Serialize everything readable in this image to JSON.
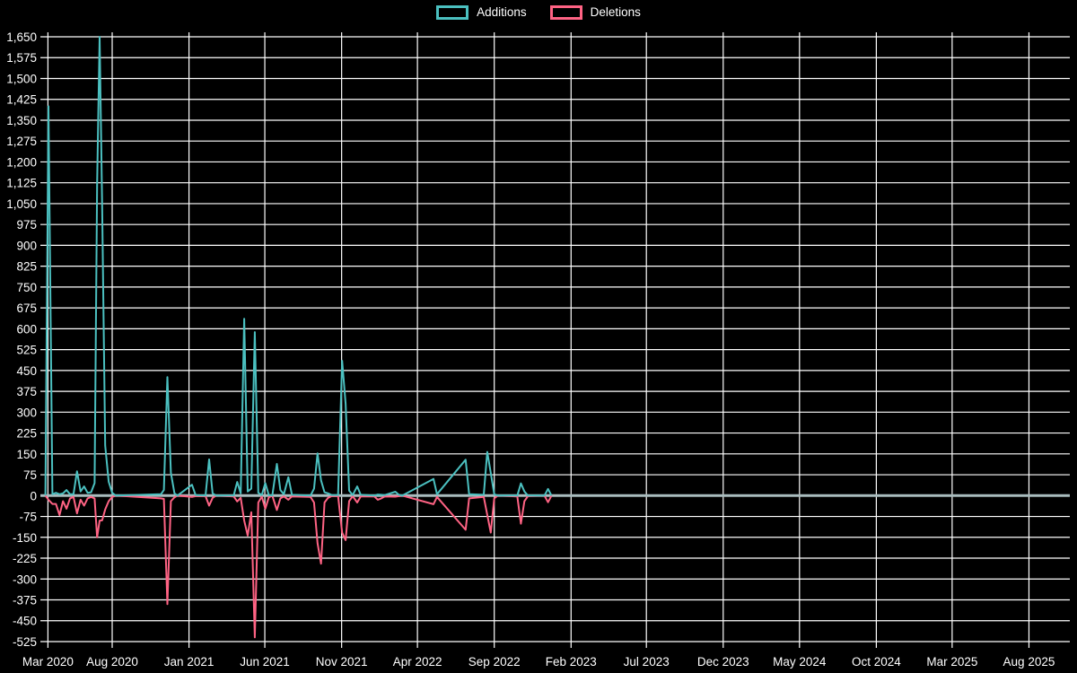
{
  "chart_data": {
    "type": "line",
    "title": "",
    "legend_position": "top-center",
    "background_color": "#000000",
    "grid": {
      "line_color": "#ffffff",
      "zero_line_color": "#a9bcbe",
      "grid_on": true
    },
    "legend": [
      {
        "label": "Additions",
        "color": "#4bc0c0"
      },
      {
        "label": "Deletions",
        "color": "#ff6384"
      }
    ],
    "y_axis": {
      "min": -525,
      "max": 1650,
      "step": 75,
      "tick_labels": [
        "1,650",
        "1,575",
        "1,500",
        "1,425",
        "1,350",
        "1,275",
        "1,200",
        "1,125",
        "1,050",
        "975",
        "900",
        "825",
        "750",
        "675",
        "600",
        "525",
        "450",
        "375",
        "300",
        "225",
        "150",
        "75",
        "0",
        "-75",
        "-150",
        "-225",
        "-300",
        "-375",
        "-450",
        "-525"
      ]
    },
    "x_axis": {
      "ticks": [
        {
          "label": "Mar 2020",
          "date": "2020-03-26"
        },
        {
          "label": "Aug 2020",
          "date": "2020-08-01"
        },
        {
          "label": "Jan 2021",
          "date": "2021-01-01"
        },
        {
          "label": "Jun 2021",
          "date": "2021-06-01"
        },
        {
          "label": "Nov 2021",
          "date": "2021-11-01"
        },
        {
          "label": "Apr 2022",
          "date": "2022-04-01"
        },
        {
          "label": "Sep 2022",
          "date": "2022-09-01"
        },
        {
          "label": "Feb 2023",
          "date": "2023-02-01"
        },
        {
          "label": "Jul 2023",
          "date": "2023-07-01"
        },
        {
          "label": "Dec 2023",
          "date": "2023-12-01"
        },
        {
          "label": "May 2024",
          "date": "2024-05-01"
        },
        {
          "label": "Oct 2024",
          "date": "2024-10-01"
        },
        {
          "label": "Mar 2025",
          "date": "2025-03-01"
        },
        {
          "label": "Aug 2025",
          "date": "2025-08-01"
        }
      ]
    },
    "series_colors": {
      "additions": "#4bc0c0",
      "deletions": "#ff6384"
    },
    "columns": [
      "date",
      "additions",
      "deletions"
    ],
    "points": [
      [
        "2020-03-21",
        0,
        0
      ],
      [
        "2020-03-27",
        1400,
        -15
      ],
      [
        "2020-04-04",
        5,
        -30
      ],
      [
        "2020-04-11",
        10,
        -30
      ],
      [
        "2020-04-18",
        5,
        -70
      ],
      [
        "2020-04-25",
        8,
        -20
      ],
      [
        "2020-05-02",
        20,
        -47
      ],
      [
        "2020-05-09",
        5,
        -10
      ],
      [
        "2020-05-16",
        5,
        -5
      ],
      [
        "2020-05-23",
        87,
        -64
      ],
      [
        "2020-05-30",
        15,
        -15
      ],
      [
        "2020-06-06",
        33,
        -36
      ],
      [
        "2020-06-13",
        10,
        -10
      ],
      [
        "2020-06-20",
        12,
        -5
      ],
      [
        "2020-06-27",
        45,
        -10
      ],
      [
        "2020-07-02",
        1120,
        -150
      ],
      [
        "2020-07-07",
        1650,
        -90
      ],
      [
        "2020-07-12",
        1046,
        -89
      ],
      [
        "2020-07-18",
        180,
        -50
      ],
      [
        "2020-07-25",
        50,
        -20
      ],
      [
        "2020-08-01",
        10,
        -5
      ],
      [
        "2020-08-08",
        0,
        0
      ],
      [
        "2020-11-06",
        5,
        -10
      ],
      [
        "2020-11-12",
        20,
        -12
      ],
      [
        "2020-11-19",
        426,
        -390
      ],
      [
        "2020-11-26",
        82,
        -20
      ],
      [
        "2020-12-03",
        8,
        -6
      ],
      [
        "2020-12-09",
        0,
        0
      ],
      [
        "2021-01-07",
        39,
        -5
      ],
      [
        "2021-01-14",
        2,
        -2
      ],
      [
        "2021-02-03",
        0,
        -2
      ],
      [
        "2021-02-10",
        130,
        -36
      ],
      [
        "2021-02-17",
        8,
        -8
      ],
      [
        "2021-02-24",
        0,
        0
      ],
      [
        "2021-03-31",
        0,
        -3
      ],
      [
        "2021-04-07",
        49,
        -21
      ],
      [
        "2021-04-14",
        8,
        -8
      ],
      [
        "2021-04-21",
        636,
        -90
      ],
      [
        "2021-04-28",
        15,
        -144
      ],
      [
        "2021-05-05",
        25,
        -60
      ],
      [
        "2021-05-12",
        588,
        -510
      ],
      [
        "2021-05-19",
        10,
        -25
      ],
      [
        "2021-05-26",
        2,
        -4
      ],
      [
        "2021-06-02",
        45,
        -47
      ],
      [
        "2021-06-09",
        2,
        -6
      ],
      [
        "2021-06-16",
        0,
        0
      ],
      [
        "2021-06-25",
        114,
        -52
      ],
      [
        "2021-07-02",
        20,
        -10
      ],
      [
        "2021-07-09",
        5,
        -3
      ],
      [
        "2021-07-18",
        66,
        -15
      ],
      [
        "2021-07-25",
        3,
        -3
      ],
      [
        "2021-08-31",
        0,
        -5
      ],
      [
        "2021-09-07",
        25,
        -25
      ],
      [
        "2021-09-14",
        152,
        -171
      ],
      [
        "2021-09-21",
        55,
        -245
      ],
      [
        "2021-09-28",
        12,
        -25
      ],
      [
        "2021-10-05",
        8,
        -8
      ],
      [
        "2021-10-12",
        2,
        -2
      ],
      [
        "2021-10-25",
        2,
        -2
      ],
      [
        "2021-11-02",
        485,
        -133
      ],
      [
        "2021-11-09",
        330,
        -160
      ],
      [
        "2021-11-16",
        18,
        -20
      ],
      [
        "2021-11-23",
        2,
        -2
      ],
      [
        "2021-12-02",
        33,
        -25
      ],
      [
        "2021-12-09",
        3,
        -3
      ],
      [
        "2022-01-05",
        0,
        -3
      ],
      [
        "2022-01-12",
        4,
        -15
      ],
      [
        "2022-01-19",
        3,
        -10
      ],
      [
        "2022-01-26",
        2,
        -3
      ],
      [
        "2022-02-16",
        14,
        -4
      ],
      [
        "2022-02-23",
        3,
        -2
      ],
      [
        "2022-03-02",
        0,
        0
      ],
      [
        "2022-05-03",
        60,
        -31
      ],
      [
        "2022-05-10",
        5,
        -5
      ],
      [
        "2022-07-06",
        129,
        -123
      ],
      [
        "2022-07-13",
        5,
        -10
      ],
      [
        "2022-08-11",
        3,
        -5
      ],
      [
        "2022-08-18",
        157,
        -69
      ],
      [
        "2022-08-25",
        82,
        -133
      ],
      [
        "2022-09-01",
        5,
        -10
      ],
      [
        "2022-09-08",
        0,
        0
      ],
      [
        "2022-10-17",
        0,
        -3
      ],
      [
        "2022-10-24",
        44,
        -101
      ],
      [
        "2022-10-31",
        15,
        -20
      ],
      [
        "2022-11-07",
        0,
        -2
      ],
      [
        "2022-12-10",
        0,
        0
      ],
      [
        "2022-12-17",
        24,
        -24
      ],
      [
        "2022-12-24",
        0,
        0
      ]
    ]
  }
}
